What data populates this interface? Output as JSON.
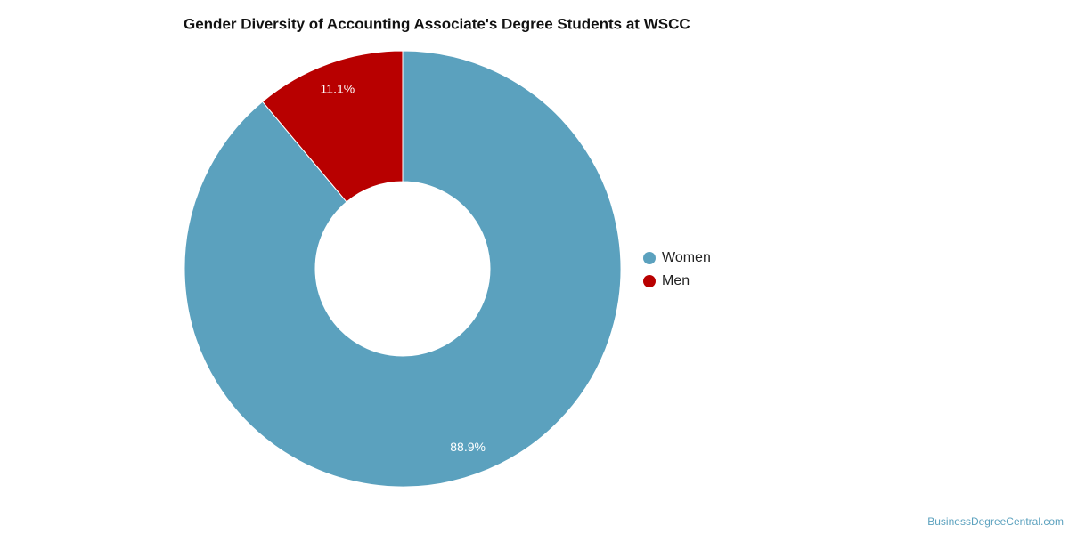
{
  "chart_data": {
    "type": "donut",
    "title": "Gender Diversity of Accounting Associate's Degree Students at WSCC",
    "categories": [
      "Women",
      "Men"
    ],
    "values": [
      88.9,
      11.1
    ],
    "value_labels": [
      "88.9%",
      "11.1%"
    ],
    "colors": [
      "#5ba1be",
      "#b80000"
    ],
    "legend": "right",
    "source": "BusinessDegreeCentral.com"
  }
}
